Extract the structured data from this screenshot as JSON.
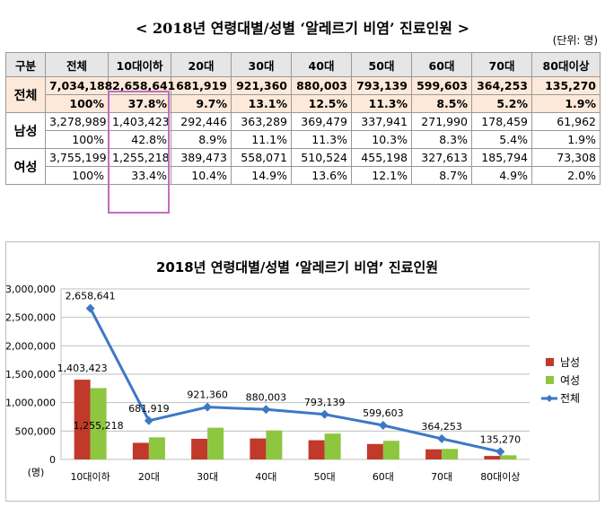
{
  "title": "< 2018년 연령대별/성별 ‘알레르기 비염’ 진료인원 >",
  "unit": "(단위: 명)",
  "table": {
    "headers": [
      "구분",
      "전체",
      "10대이하",
      "20대",
      "30대",
      "40대",
      "50대",
      "60대",
      "70대",
      "80대이상"
    ],
    "groups": [
      {
        "label": "전체",
        "counts": [
          "7,034,188",
          "2,658,641",
          "681,919",
          "921,360",
          "880,003",
          "793,139",
          "599,603",
          "364,253",
          "135,270"
        ],
        "pcts": [
          "100%",
          "37.8%",
          "9.7%",
          "13.1%",
          "12.5%",
          "11.3%",
          "8.5%",
          "5.2%",
          "1.9%"
        ]
      },
      {
        "label": "남성",
        "counts": [
          "3,278,989",
          "1,403,423",
          "292,446",
          "363,289",
          "369,479",
          "337,941",
          "271,990",
          "178,459",
          "61,962"
        ],
        "pcts": [
          "100%",
          "42.8%",
          "8.9%",
          "11.1%",
          "11.3%",
          "10.3%",
          "8.3%",
          "5.4%",
          "1.9%"
        ]
      },
      {
        "label": "여성",
        "counts": [
          "3,755,199",
          "1,255,218",
          "389,473",
          "558,071",
          "510,524",
          "455,198",
          "327,613",
          "185,794",
          "73,308"
        ],
        "pcts": [
          "100%",
          "33.4%",
          "10.4%",
          "14.9%",
          "13.6%",
          "12.1%",
          "8.7%",
          "4.9%",
          "2.0%"
        ]
      }
    ]
  },
  "chart_data": {
    "type": "bar",
    "title": "2018년 연령대별/성별 ‘알레르기 비염’ 진료인원",
    "ylabel": "(명)",
    "categories": [
      "10대이하",
      "20대",
      "30대",
      "40대",
      "50대",
      "60대",
      "70대",
      "80대이상"
    ],
    "ylim": [
      0,
      3000000
    ],
    "yticks": [
      "0",
      "500,000",
      "1,000,000",
      "1,500,000",
      "2,000,000",
      "2,500,000",
      "3,000,000"
    ],
    "series": [
      {
        "name": "남성",
        "kind": "bar",
        "color": "#c0392b",
        "values": [
          1403423,
          292446,
          363289,
          369479,
          337941,
          271990,
          178459,
          61962
        ]
      },
      {
        "name": "여성",
        "kind": "bar",
        "color": "#8dc63f",
        "values": [
          1255218,
          389473,
          558071,
          510524,
          455198,
          327613,
          185794,
          73308
        ]
      },
      {
        "name": "전체",
        "kind": "line",
        "color": "#3d78c5",
        "values": [
          2658641,
          681919,
          921360,
          880003,
          793139,
          599603,
          364253,
          135270
        ]
      }
    ],
    "data_labels": {
      "total": [
        "2,658,641",
        "681,919",
        "921,360",
        "880,003",
        "793,139",
        "599,603",
        "364,253",
        "135,270"
      ],
      "male_first": "1,403,423",
      "female_first": "1,255,218"
    },
    "legend_position": "right",
    "grid": true
  }
}
